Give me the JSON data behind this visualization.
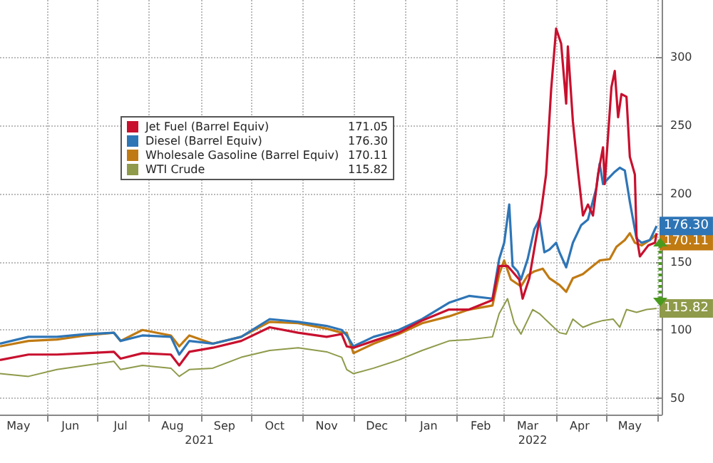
{
  "chart_data": {
    "type": "line",
    "xlim": [
      "2021-05-04",
      "2022-06-03"
    ],
    "ylim": [
      38,
      342
    ],
    "xticks": [
      {
        "value": "2021-05-15",
        "label": "May"
      },
      {
        "value": "2021-06-01",
        "label": null
      },
      {
        "value": "2021-06-15",
        "label": "Jun"
      },
      {
        "value": "2021-07-01",
        "label": null
      },
      {
        "value": "2021-07-15",
        "label": "Jul"
      },
      {
        "value": "2021-08-01",
        "label": null
      },
      {
        "value": "2021-08-15",
        "label": "Aug"
      },
      {
        "value": "2021-09-01",
        "label": null
      },
      {
        "value": "2021-09-15",
        "label": "Sep"
      },
      {
        "value": "2021-10-01",
        "label": null
      },
      {
        "value": "2021-10-15",
        "label": "Oct"
      },
      {
        "value": "2021-11-01",
        "label": null
      },
      {
        "value": "2021-11-15",
        "label": "Nov"
      },
      {
        "value": "2021-12-01",
        "label": null
      },
      {
        "value": "2021-12-15",
        "label": "Dec"
      },
      {
        "value": "2022-01-01",
        "label": null
      },
      {
        "value": "2022-01-15",
        "label": "Jan"
      },
      {
        "value": "2022-02-01",
        "label": null
      },
      {
        "value": "2022-02-15",
        "label": "Feb"
      },
      {
        "value": "2022-03-01",
        "label": null
      },
      {
        "value": "2022-03-15",
        "label": "Mar"
      },
      {
        "value": "2022-04-01",
        "label": null
      },
      {
        "value": "2022-04-15",
        "label": "Apr"
      },
      {
        "value": "2022-05-01",
        "label": null
      },
      {
        "value": "2022-05-15",
        "label": "May"
      },
      {
        "value": "2022-06-01",
        "label": null
      }
    ],
    "x2lim": [
      "2021-05-04",
      "2022-06-03"
    ],
    "x2ticks": [
      {
        "value": "2021-08-31",
        "label": "2021"
      },
      {
        "value": "2022-03-18",
        "label": "2022"
      }
    ],
    "annotations": [
      "171.05",
      "176.30",
      "170.11",
      "115.82"
    ],
    "yticks": [
      50,
      100,
      150,
      200,
      250,
      300
    ],
    "grid": true,
    "legend": "top left",
    "marker": "none",
    "line_style": "solid",
    "series": [
      {
        "name": "Jet Fuel (Barrel Equiv)",
        "color": "#c8102e",
        "x": [
          "2021-05-04",
          "2021-05-21",
          "2021-06-07",
          "2021-06-24",
          "2021-07-11",
          "2021-07-15",
          "2021-07-28",
          "2021-08-14",
          "2021-08-19",
          "2021-08-25",
          "2021-09-08",
          "2021-09-25",
          "2021-10-12",
          "2021-10-29",
          "2021-11-15",
          "2021-11-24",
          "2021-11-27",
          "2021-12-01",
          "2021-12-13",
          "2021-12-28",
          "2022-01-11",
          "2022-01-27",
          "2022-02-08",
          "2022-02-22",
          "2022-02-26",
          "2022-03-03",
          "2022-03-10",
          "2022-03-12",
          "2022-03-16",
          "2022-03-20",
          "2022-03-23",
          "2022-03-26",
          "2022-03-29",
          "2022-04-01",
          "2022-04-04",
          "2022-04-07",
          "2022-04-08",
          "2022-04-11",
          "2022-04-14",
          "2022-04-17",
          "2022-04-20",
          "2022-04-23",
          "2022-04-26",
          "2022-04-29",
          "2022-04-30",
          "2022-05-04",
          "2022-05-06",
          "2022-05-08",
          "2022-05-10",
          "2022-05-13",
          "2022-05-15",
          "2022-05-18",
          "2022-05-19",
          "2022-05-21",
          "2022-05-26",
          "2022-05-30",
          "2022-05-31"
        ],
        "values": [
          78,
          82,
          82,
          83,
          84,
          79,
          83,
          82,
          74,
          84,
          87,
          92,
          102,
          98,
          95,
          97,
          88,
          87,
          92,
          98,
          107,
          115,
          115,
          122,
          147,
          147,
          137,
          123,
          138,
          167,
          187,
          214,
          276,
          321,
          310,
          266,
          308,
          253,
          217,
          184,
          192,
          184,
          214,
          234,
          207,
          278,
          290,
          256,
          273,
          271,
          227,
          214,
          169,
          154,
          162,
          164,
          171
        ]
      },
      {
        "name": "Diesel (Barrel Equiv)",
        "color": "#2e75b6",
        "x": [
          "2021-05-04",
          "2021-05-21",
          "2021-06-07",
          "2021-06-24",
          "2021-07-11",
          "2021-07-15",
          "2021-07-28",
          "2021-08-14",
          "2021-08-19",
          "2021-08-25",
          "2021-09-08",
          "2021-09-25",
          "2021-10-12",
          "2021-10-29",
          "2021-11-15",
          "2021-11-24",
          "2021-11-27",
          "2021-12-01",
          "2021-12-13",
          "2021-12-28",
          "2022-01-11",
          "2022-01-27",
          "2022-02-08",
          "2022-02-22",
          "2022-02-26",
          "2022-03-01",
          "2022-03-04",
          "2022-03-06",
          "2022-03-09",
          "2022-03-11",
          "2022-03-15",
          "2022-03-19",
          "2022-03-22",
          "2022-03-25",
          "2022-03-28",
          "2022-04-01",
          "2022-04-03",
          "2022-04-07",
          "2022-04-11",
          "2022-04-16",
          "2022-04-20",
          "2022-04-25",
          "2022-04-27",
          "2022-04-29",
          "2022-05-02",
          "2022-05-06",
          "2022-05-09",
          "2022-05-12",
          "2022-05-15",
          "2022-05-19",
          "2022-05-22",
          "2022-05-27",
          "2022-05-31"
        ],
        "values": [
          90,
          95,
          95,
          97,
          98,
          92,
          96,
          95,
          82,
          92,
          90,
          95,
          108,
          106,
          103,
          100,
          96,
          88,
          95,
          100,
          108,
          120,
          125,
          123,
          152,
          164,
          192,
          147,
          143,
          137,
          152,
          174,
          181,
          157,
          159,
          164,
          157,
          146,
          164,
          177,
          181,
          204,
          222,
          207,
          211,
          216,
          219,
          217,
          194,
          167,
          164,
          166,
          176.3
        ],
        "value_labels": [
          null,
          null,
          null,
          null,
          null,
          null,
          null,
          null,
          null,
          null,
          null,
          null,
          null,
          null,
          null,
          null,
          null,
          null,
          null,
          null,
          null,
          null,
          null,
          null,
          null,
          null,
          null,
          null,
          null,
          null,
          null,
          null,
          null,
          null,
          null,
          null,
          null,
          null,
          null,
          null,
          null,
          null,
          null,
          null,
          null,
          null,
          null,
          null,
          null,
          null,
          null,
          null,
          "176.30"
        ]
      },
      {
        "name": "Wholesale Gasoline (Barrel Equiv)",
        "color": "#c07a12",
        "x": [
          "2021-05-04",
          "2021-05-21",
          "2021-06-07",
          "2021-06-24",
          "2021-07-11",
          "2021-07-15",
          "2021-07-28",
          "2021-08-14",
          "2021-08-19",
          "2021-08-25",
          "2021-09-08",
          "2021-09-25",
          "2021-10-12",
          "2021-10-29",
          "2021-11-15",
          "2021-11-24",
          "2021-11-27",
          "2021-12-01",
          "2021-12-13",
          "2021-12-28",
          "2022-01-11",
          "2022-01-27",
          "2022-02-08",
          "2022-02-22",
          "2022-02-26",
          "2022-03-01",
          "2022-03-05",
          "2022-03-11",
          "2022-03-15",
          "2022-03-19",
          "2022-03-24",
          "2022-03-28",
          "2022-04-03",
          "2022-04-07",
          "2022-04-11",
          "2022-04-17",
          "2022-04-23",
          "2022-04-27",
          "2022-05-03",
          "2022-05-07",
          "2022-05-12",
          "2022-05-15",
          "2022-05-18",
          "2022-05-22",
          "2022-05-27",
          "2022-05-31"
        ],
        "values": [
          88,
          92,
          93,
          96,
          98,
          92,
          100,
          96,
          88,
          96,
          90,
          95,
          106,
          105,
          101,
          98,
          98,
          83,
          90,
          97,
          105,
          110,
          115,
          118,
          141,
          151,
          137,
          132,
          140,
          143,
          145,
          138,
          133,
          128,
          138,
          141,
          147,
          151,
          152,
          161,
          166,
          171,
          164,
          162,
          166,
          170.11
        ],
        "value_labels": [
          null,
          null,
          null,
          null,
          null,
          null,
          null,
          null,
          null,
          null,
          null,
          null,
          null,
          null,
          null,
          null,
          null,
          null,
          null,
          null,
          null,
          null,
          null,
          null,
          null,
          null,
          null,
          null,
          null,
          null,
          null,
          null,
          null,
          null,
          null,
          null,
          null,
          null,
          null,
          null,
          null,
          null,
          null,
          null,
          null,
          "170.11"
        ]
      },
      {
        "name": "WTI Crude",
        "color": "#8f9a4a",
        "x": [
          "2021-05-04",
          "2021-05-21",
          "2021-06-07",
          "2021-06-24",
          "2021-07-11",
          "2021-07-15",
          "2021-07-28",
          "2021-08-14",
          "2021-08-19",
          "2021-08-25",
          "2021-09-08",
          "2021-09-25",
          "2021-10-12",
          "2021-10-29",
          "2021-11-15",
          "2021-11-24",
          "2021-11-27",
          "2021-12-01",
          "2021-12-13",
          "2021-12-28",
          "2022-01-11",
          "2022-01-27",
          "2022-02-08",
          "2022-02-22",
          "2022-02-26",
          "2022-03-03",
          "2022-03-07",
          "2022-03-11",
          "2022-03-18",
          "2022-03-22",
          "2022-03-28",
          "2022-04-03",
          "2022-04-07",
          "2022-04-11",
          "2022-04-17",
          "2022-04-23",
          "2022-04-29",
          "2022-05-05",
          "2022-05-09",
          "2022-05-13",
          "2022-05-19",
          "2022-05-25",
          "2022-05-31"
        ],
        "values": [
          68,
          66,
          71,
          74,
          77,
          71,
          74,
          72,
          66,
          71,
          72,
          80,
          85,
          87,
          84,
          80,
          71,
          68,
          72,
          78,
          85,
          92,
          93,
          95,
          112,
          123,
          105,
          97,
          115,
          112,
          105,
          98,
          97,
          108,
          102,
          105,
          107,
          108,
          102,
          115,
          113,
          115,
          115.82
        ],
        "value_labels": [
          null,
          null,
          null,
          null,
          null,
          null,
          null,
          null,
          null,
          null,
          null,
          null,
          null,
          null,
          null,
          null,
          null,
          null,
          null,
          null,
          null,
          null,
          null,
          null,
          null,
          null,
          null,
          null,
          null,
          null,
          null,
          null,
          null,
          null,
          null,
          null,
          null,
          null,
          null,
          null,
          null,
          null,
          "115.82"
        ]
      }
    ]
  }
}
